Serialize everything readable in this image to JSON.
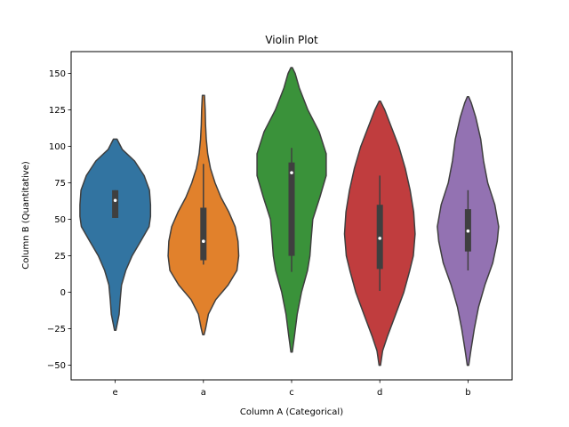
{
  "chart_data": {
    "type": "violin",
    "title": "Violin Plot",
    "xlabel": "Column A (Categorical)",
    "ylabel": "Column B (Quantitative)",
    "ylim": [
      -60,
      165
    ],
    "yticks": [
      -50,
      -25,
      0,
      25,
      50,
      75,
      100,
      125,
      150
    ],
    "grid": false,
    "categories": [
      "e",
      "a",
      "c",
      "d",
      "b"
    ],
    "series": [
      {
        "category": "e",
        "color": "#3274a1",
        "min": 51,
        "q1": 51,
        "median": 63,
        "q3": 70,
        "max": 70,
        "density": [
          [
            -26,
            0.02
          ],
          [
            -15,
            0.11
          ],
          [
            -5,
            0.14
          ],
          [
            5,
            0.18
          ],
          [
            15,
            0.3
          ],
          [
            25,
            0.48
          ],
          [
            35,
            0.72
          ],
          [
            45,
            0.96
          ],
          [
            52,
            1.0
          ],
          [
            60,
            1.0
          ],
          [
            70,
            0.97
          ],
          [
            80,
            0.82
          ],
          [
            90,
            0.55
          ],
          [
            98,
            0.2
          ],
          [
            105,
            0.05
          ]
        ]
      },
      {
        "category": "a",
        "color": "#e1812c",
        "min": 19,
        "q1": 22,
        "median": 35,
        "q3": 58,
        "max": 88,
        "density": [
          [
            -29,
            0.02
          ],
          [
            -25,
            0.06
          ],
          [
            -15,
            0.14
          ],
          [
            -5,
            0.35
          ],
          [
            5,
            0.7
          ],
          [
            15,
            0.95
          ],
          [
            25,
            1.0
          ],
          [
            35,
            0.98
          ],
          [
            45,
            0.9
          ],
          [
            55,
            0.72
          ],
          [
            65,
            0.5
          ],
          [
            75,
            0.33
          ],
          [
            85,
            0.2
          ],
          [
            95,
            0.12
          ],
          [
            105,
            0.08
          ],
          [
            115,
            0.06
          ],
          [
            125,
            0.05
          ],
          [
            135,
            0.03
          ]
        ]
      },
      {
        "category": "c",
        "color": "#3a923a",
        "min": 14,
        "q1": 25,
        "median": 82,
        "q3": 89,
        "max": 99,
        "density": [
          [
            -41,
            0.02
          ],
          [
            -30,
            0.08
          ],
          [
            -15,
            0.16
          ],
          [
            0,
            0.28
          ],
          [
            15,
            0.45
          ],
          [
            25,
            0.52
          ],
          [
            35,
            0.55
          ],
          [
            50,
            0.6
          ],
          [
            65,
            0.8
          ],
          [
            80,
            0.98
          ],
          [
            95,
            0.98
          ],
          [
            110,
            0.78
          ],
          [
            125,
            0.46
          ],
          [
            140,
            0.22
          ],
          [
            150,
            0.1
          ],
          [
            154,
            0.02
          ]
        ]
      },
      {
        "category": "d",
        "color": "#c03d3e",
        "min": 1,
        "q1": 16,
        "median": 37,
        "q3": 60,
        "max": 80,
        "density": [
          [
            -50,
            0.02
          ],
          [
            -40,
            0.08
          ],
          [
            -30,
            0.22
          ],
          [
            -15,
            0.45
          ],
          [
            0,
            0.68
          ],
          [
            15,
            0.85
          ],
          [
            25,
            0.95
          ],
          [
            40,
            1.0
          ],
          [
            55,
            0.96
          ],
          [
            70,
            0.86
          ],
          [
            85,
            0.72
          ],
          [
            100,
            0.54
          ],
          [
            115,
            0.3
          ],
          [
            125,
            0.14
          ],
          [
            131,
            0.02
          ]
        ]
      },
      {
        "category": "b",
        "color": "#9372b2",
        "min": 15,
        "q1": 28,
        "median": 42,
        "q3": 57,
        "max": 70,
        "density": [
          [
            -50,
            0.02
          ],
          [
            -40,
            0.08
          ],
          [
            -25,
            0.18
          ],
          [
            -10,
            0.3
          ],
          [
            5,
            0.48
          ],
          [
            20,
            0.7
          ],
          [
            35,
            0.83
          ],
          [
            45,
            0.87
          ],
          [
            60,
            0.76
          ],
          [
            75,
            0.56
          ],
          [
            90,
            0.44
          ],
          [
            105,
            0.36
          ],
          [
            120,
            0.22
          ],
          [
            130,
            0.09
          ],
          [
            134,
            0.02
          ]
        ]
      }
    ]
  }
}
